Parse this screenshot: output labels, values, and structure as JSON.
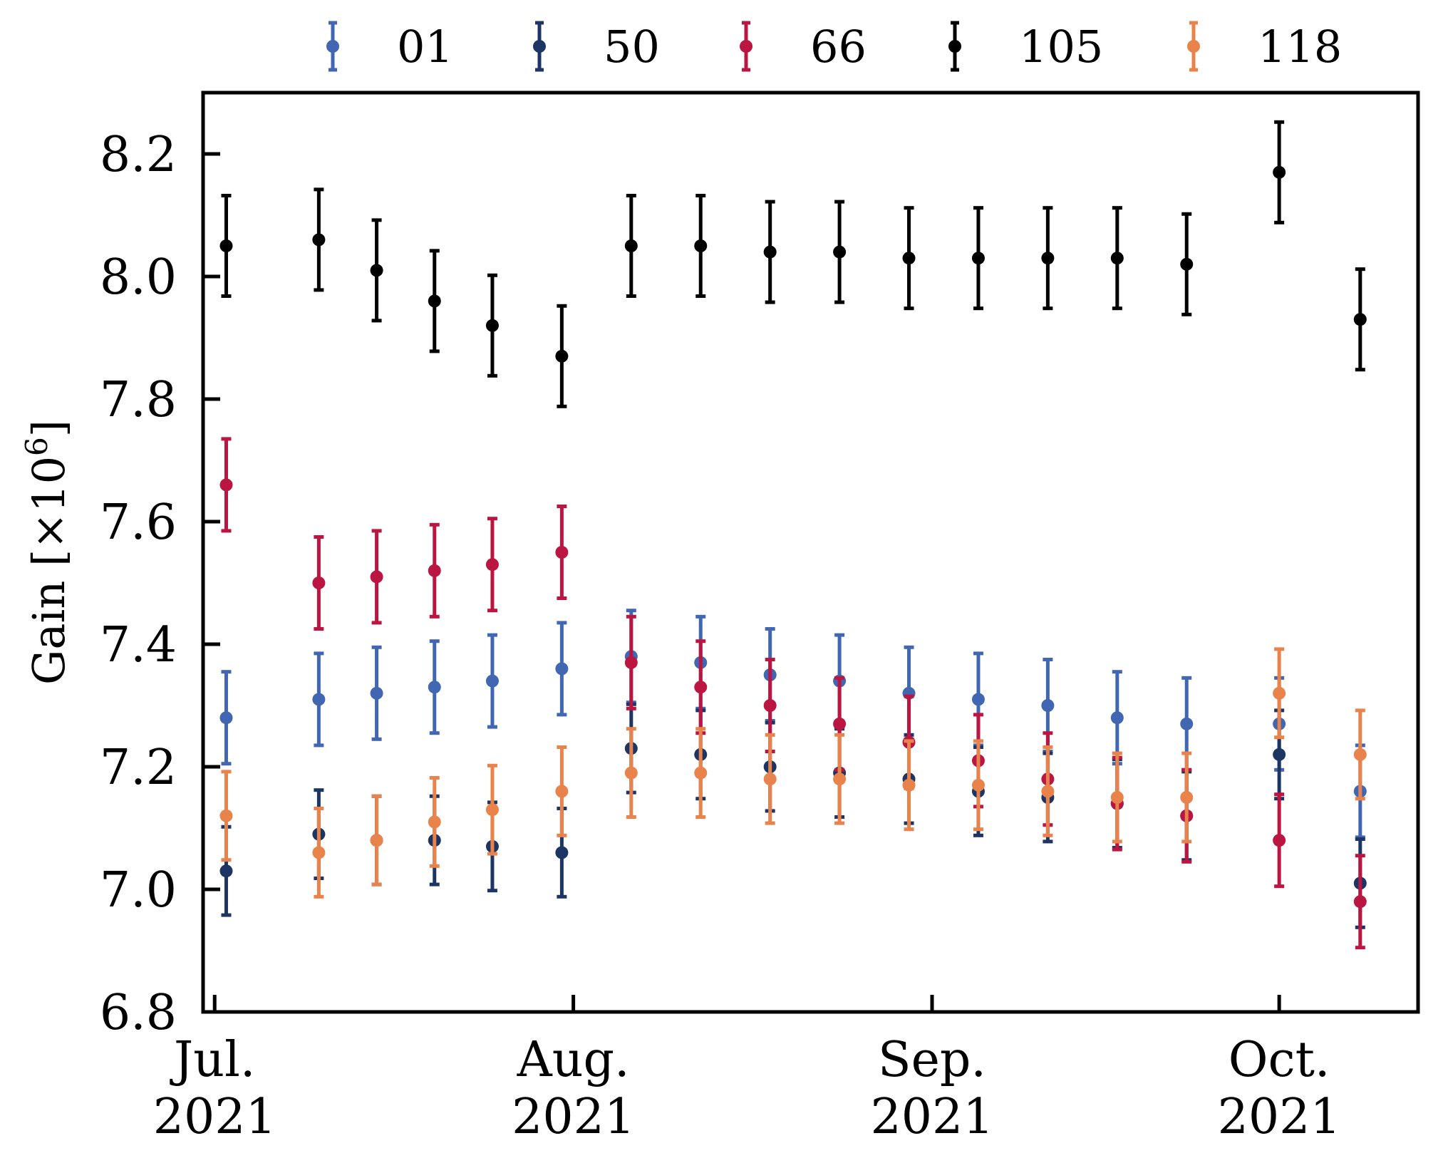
{
  "chart_data": {
    "type": "scatter",
    "title": "",
    "xlabel": "",
    "ylabel_text": "Gain [×10",
    "ylabel_exponent": "6",
    "ylabel_close": "]",
    "ylim": [
      6.8,
      8.3
    ],
    "xlim": [
      "2021-06-30",
      "2021-10-13"
    ],
    "grid": false,
    "legend_position": "top",
    "yticks": [
      "6.8",
      "7.0",
      "7.2",
      "7.4",
      "7.6",
      "7.8",
      "8.0",
      "8.2"
    ],
    "xticks": [
      {
        "date": "2021-07-01",
        "line1": "Jul.",
        "line2": "2021"
      },
      {
        "date": "2021-08-01",
        "line1": "Aug.",
        "line2": "2021"
      },
      {
        "date": "2021-09-01",
        "line1": "Sep.",
        "line2": "2021"
      },
      {
        "date": "2021-10-01",
        "line1": "Oct.",
        "line2": "2021"
      }
    ],
    "x": [
      "2021-07-02",
      "2021-07-10",
      "2021-07-15",
      "2021-07-20",
      "2021-07-25",
      "2021-07-31",
      "2021-08-06",
      "2021-08-12",
      "2021-08-18",
      "2021-08-24",
      "2021-08-30",
      "2021-09-05",
      "2021-09-11",
      "2021-09-17",
      "2021-09-23",
      "2021-10-01",
      "2021-10-08"
    ],
    "series": [
      {
        "name": "01",
        "color": "#4166b2",
        "err": 0.075,
        "values": [
          7.28,
          7.31,
          7.32,
          7.33,
          7.34,
          7.36,
          7.38,
          7.37,
          7.35,
          7.34,
          7.32,
          7.31,
          7.3,
          7.28,
          7.27,
          7.27,
          7.16
        ]
      },
      {
        "name": "50",
        "color": "#1c3563",
        "err": 0.072,
        "values": [
          7.03,
          7.09,
          7.08,
          7.08,
          7.07,
          7.06,
          7.23,
          7.22,
          7.2,
          7.19,
          7.18,
          7.16,
          7.15,
          7.14,
          7.12,
          7.22,
          7.01
        ]
      },
      {
        "name": "66",
        "color": "#bb1541",
        "err": 0.075,
        "values": [
          7.66,
          7.5,
          7.51,
          7.52,
          7.53,
          7.55,
          7.37,
          7.33,
          7.3,
          7.27,
          7.24,
          7.21,
          7.18,
          7.14,
          7.12,
          7.08,
          6.98
        ]
      },
      {
        "name": "105",
        "color": "#000000",
        "err": 0.082,
        "values": [
          8.05,
          8.06,
          8.01,
          7.96,
          7.92,
          7.87,
          8.05,
          8.05,
          8.04,
          8.04,
          8.03,
          8.03,
          8.03,
          8.03,
          8.02,
          8.17,
          7.93
        ]
      },
      {
        "name": "118",
        "color": "#e8834c",
        "err": 0.072,
        "values": [
          7.12,
          7.06,
          7.08,
          7.11,
          7.13,
          7.16,
          7.19,
          7.19,
          7.18,
          7.18,
          7.17,
          7.17,
          7.16,
          7.15,
          7.15,
          7.32,
          7.22
        ]
      }
    ]
  }
}
